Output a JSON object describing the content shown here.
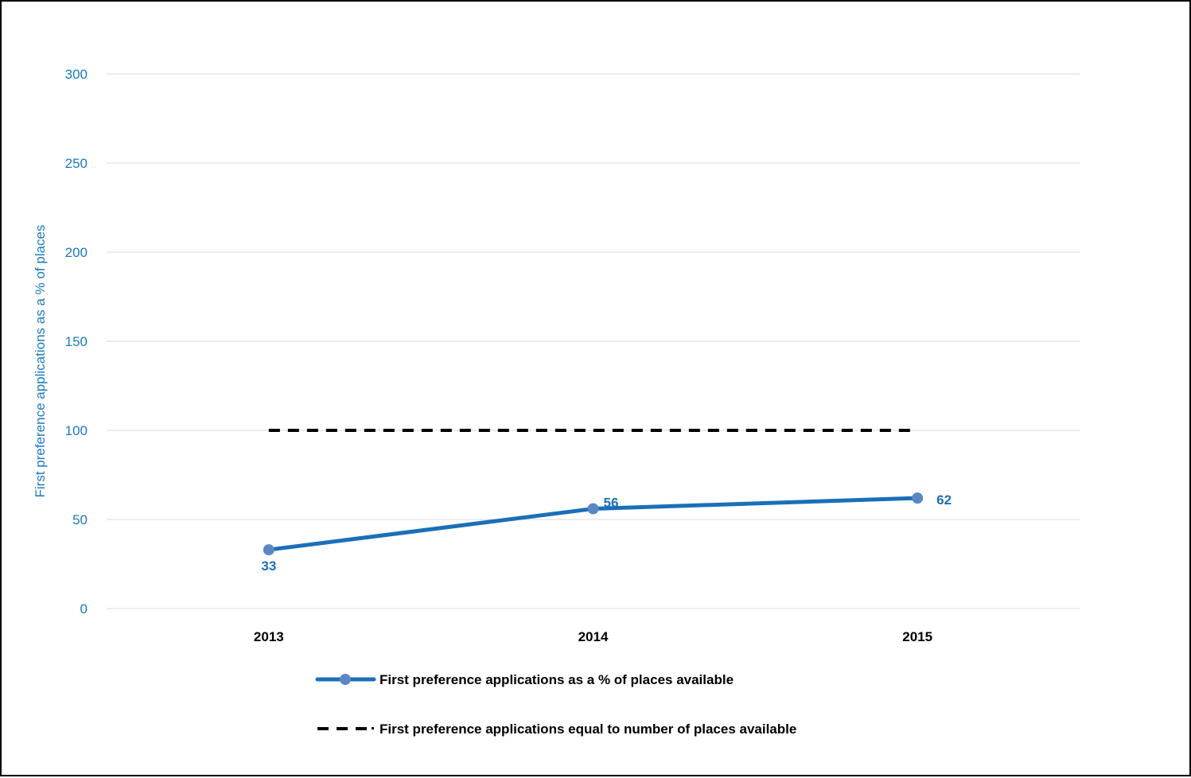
{
  "chart_data": {
    "type": "line",
    "categories": [
      "2013",
      "2014",
      "2015"
    ],
    "series": [
      {
        "name": "First preference applications as a % of places available",
        "values": [
          33,
          56,
          62
        ],
        "color": "#1a6fb8",
        "marker_color": "#5b87c5",
        "style": "solid"
      },
      {
        "name": "First preference applications equal to number of places available",
        "values": [
          100,
          100,
          100
        ],
        "color": "#000000",
        "style": "dashed"
      }
    ],
    "title": "",
    "xlabel": "",
    "ylabel": "First preference applications as a % of places",
    "ylim": [
      0,
      300
    ],
    "yticks": [
      "0",
      "50",
      "100",
      "150",
      "200",
      "250",
      "300"
    ],
    "data_labels": [
      "33",
      "56",
      "62"
    ],
    "grid": true,
    "legend_position": "bottom"
  }
}
